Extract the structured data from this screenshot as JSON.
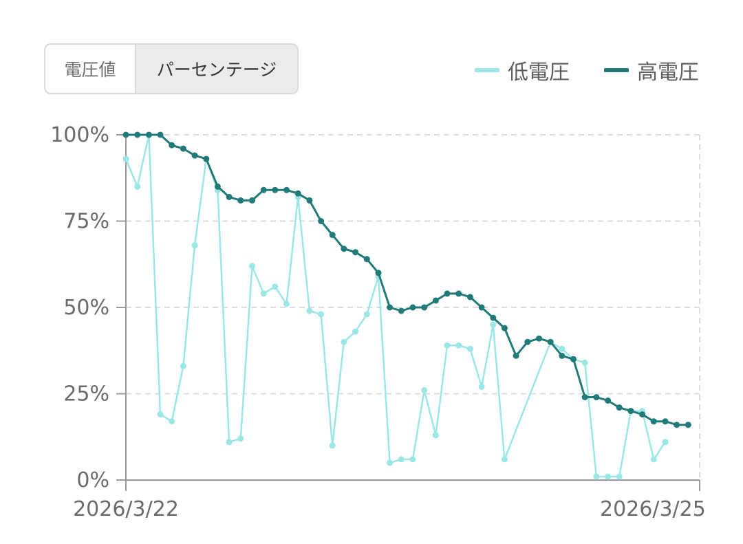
{
  "toggle": {
    "option_voltage": "電圧値",
    "option_percentage": "パーセンテージ",
    "selected": "パーセンテージ"
  },
  "legend": [
    {
      "label": "低電圧",
      "color": "#9be6e6"
    },
    {
      "label": "高電圧",
      "color": "#217a7a"
    }
  ],
  "chart_data": {
    "type": "line",
    "y_ticks": [
      "0%",
      "25%",
      "50%",
      "75%",
      "100%"
    ],
    "ylim": [
      0,
      100
    ],
    "x_tick_labels": [
      "2026/3/22",
      "2026/3/25"
    ],
    "grid": "horizontal dashed",
    "legend_position": "top-right",
    "x_count": 51,
    "series": [
      {
        "name": "低電圧",
        "color": "#9be6e6",
        "values": [
          93,
          85,
          100,
          19,
          17,
          33,
          68,
          93,
          84,
          11,
          12,
          62,
          54,
          56,
          51,
          82,
          49,
          48,
          10,
          40,
          43,
          48,
          59,
          5,
          6,
          6,
          26,
          13,
          39,
          39,
          38,
          27,
          45,
          6,
          null,
          null,
          null,
          40,
          38,
          35,
          34,
          1,
          1,
          1,
          20,
          20,
          6,
          11,
          null,
          null,
          null
        ]
      },
      {
        "name": "高電圧",
        "color": "#217a7a",
        "values": [
          100,
          100,
          100,
          100,
          97,
          96,
          94,
          93,
          85,
          82,
          81,
          81,
          84,
          84,
          84,
          83,
          81,
          75,
          71,
          67,
          66,
          64,
          60,
          50,
          49,
          50,
          50,
          52,
          54,
          54,
          53,
          50,
          47,
          44,
          36,
          40,
          41,
          40,
          36,
          35,
          24,
          24,
          23,
          21,
          20,
          19,
          17,
          17,
          16,
          16,
          null
        ]
      }
    ]
  }
}
